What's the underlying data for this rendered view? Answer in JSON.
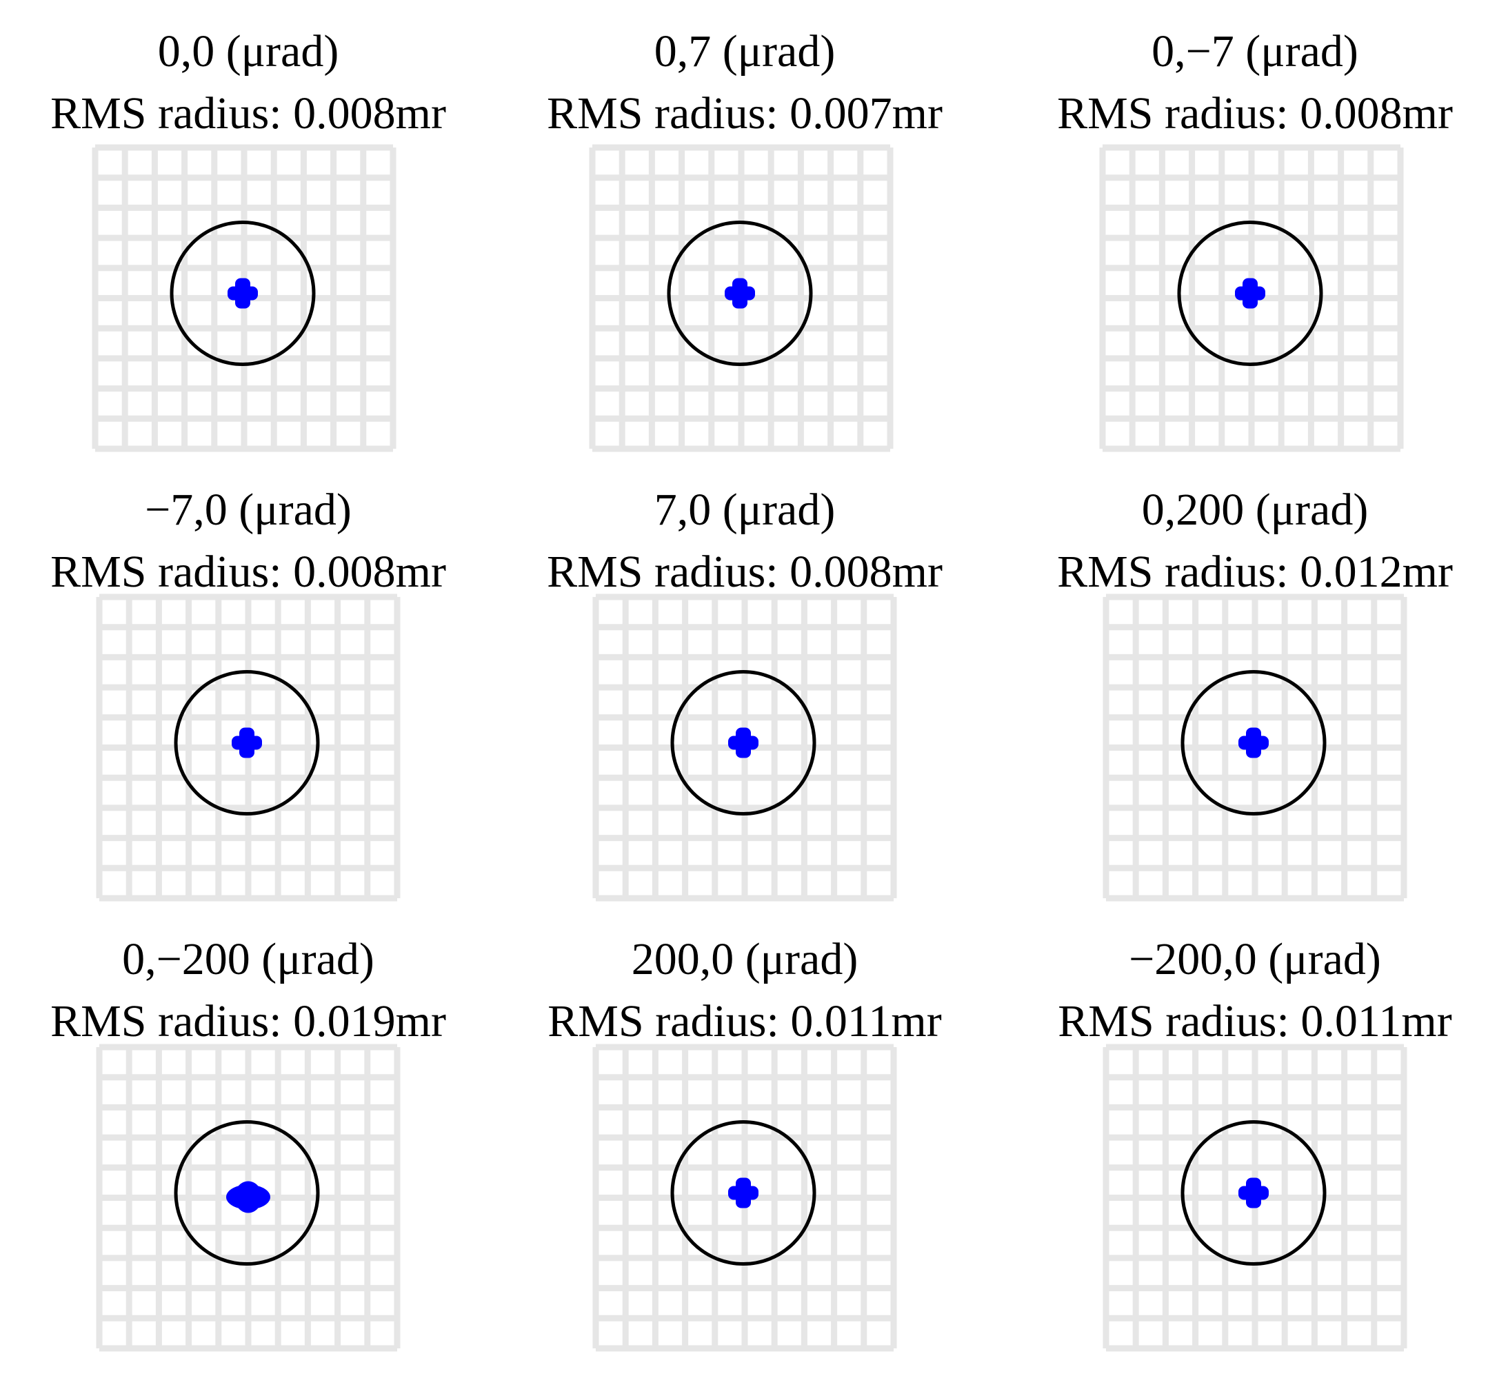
{
  "colors": {
    "grid": "#e6e6e6",
    "circle": "#000000",
    "spot": "#0000ff"
  },
  "panels": [
    {
      "field": "0,0 (μrad)",
      "rms": "RMS radius: 0.008mr",
      "spot_size": "small"
    },
    {
      "field": "0,7 (μrad)",
      "rms": "RMS radius: 0.007mr",
      "spot_size": "small"
    },
    {
      "field": "0,−7 (μrad)",
      "rms": "RMS radius: 0.008mr",
      "spot_size": "small"
    },
    {
      "field": "−7,0 (μrad)",
      "rms": "RMS radius: 0.008mr",
      "spot_size": "small"
    },
    {
      "field": "7,0 (μrad)",
      "rms": "RMS radius: 0.008mr",
      "spot_size": "small"
    },
    {
      "field": "0,200 (μrad)",
      "rms": "RMS radius: 0.012mr",
      "spot_size": "small"
    },
    {
      "field": "0,−200 (μrad)",
      "rms": "RMS radius: 0.019mr",
      "spot_size": "large"
    },
    {
      "field": "200,0 (μrad)",
      "rms": "RMS radius: 0.011mr",
      "spot_size": "small"
    },
    {
      "field": "−200,0 (μrad)",
      "rms": "RMS radius: 0.011mr",
      "spot_size": "small"
    }
  ]
}
